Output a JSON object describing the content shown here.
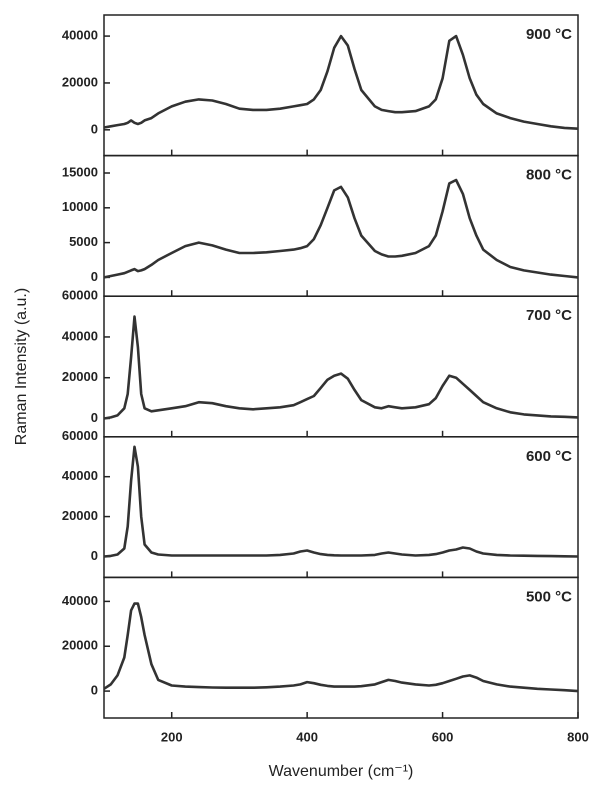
{
  "chart_data": [
    {
      "type": "line",
      "label": "900 °C",
      "color": "#333333",
      "x": [
        100,
        110,
        120,
        130,
        135,
        140,
        145,
        150,
        155,
        160,
        170,
        180,
        200,
        220,
        240,
        260,
        280,
        300,
        320,
        340,
        360,
        380,
        390,
        400,
        410,
        420,
        430,
        440,
        450,
        460,
        470,
        480,
        500,
        510,
        520,
        530,
        540,
        560,
        580,
        590,
        600,
        610,
        620,
        630,
        640,
        650,
        660,
        680,
        700,
        720,
        740,
        760,
        780,
        800
      ],
      "values": [
        1000,
        1500,
        2000,
        2500,
        3000,
        4000,
        3000,
        2500,
        3000,
        4000,
        5000,
        7000,
        10000,
        12000,
        13000,
        12500,
        11000,
        9000,
        8500,
        8500,
        9000,
        10000,
        10500,
        11000,
        13000,
        17000,
        25000,
        35000,
        40000,
        36000,
        26000,
        17000,
        10000,
        8500,
        8000,
        7500,
        7500,
        8000,
        10000,
        13000,
        22000,
        38000,
        40000,
        32000,
        22000,
        15000,
        11000,
        7000,
        5000,
        3500,
        2500,
        1500,
        800,
        500
      ],
      "xlim": [
        100,
        800
      ],
      "xticks": [
        200,
        400,
        600
      ],
      "ylim": [
        -11000,
        49000
      ],
      "yticks": [
        0,
        20000,
        40000
      ]
    },
    {
      "type": "line",
      "label": "800 °C",
      "color": "#333333",
      "x": [
        100,
        110,
        120,
        130,
        135,
        140,
        145,
        150,
        155,
        160,
        170,
        180,
        200,
        220,
        240,
        260,
        280,
        300,
        320,
        340,
        360,
        380,
        390,
        400,
        410,
        420,
        430,
        440,
        450,
        460,
        470,
        480,
        500,
        510,
        520,
        530,
        540,
        560,
        580,
        590,
        600,
        610,
        620,
        630,
        640,
        650,
        660,
        680,
        700,
        720,
        740,
        760,
        780,
        800
      ],
      "values": [
        0,
        200,
        400,
        600,
        800,
        1000,
        1200,
        900,
        1000,
        1200,
        1800,
        2500,
        3500,
        4500,
        5000,
        4600,
        4000,
        3500,
        3500,
        3600,
        3800,
        4000,
        4200,
        4500,
        5500,
        7500,
        10000,
        12500,
        13000,
        11500,
        8500,
        6000,
        3800,
        3300,
        3000,
        3000,
        3100,
        3500,
        4500,
        6000,
        9500,
        13500,
        14000,
        12000,
        8500,
        6000,
        4000,
        2500,
        1500,
        1000,
        700,
        400,
        200,
        0
      ],
      "xlim": [
        100,
        800
      ],
      "xticks": [
        200,
        400,
        600
      ],
      "ylim": [
        -2700,
        17500
      ],
      "yticks": [
        0,
        5000,
        10000,
        15000
      ]
    },
    {
      "type": "line",
      "label": "700 °C",
      "color": "#333333",
      "ylabel": "Raman Intensity (a.u.)",
      "x": [
        100,
        110,
        120,
        130,
        135,
        140,
        145,
        150,
        155,
        160,
        170,
        180,
        200,
        220,
        240,
        260,
        280,
        300,
        320,
        340,
        360,
        380,
        390,
        400,
        410,
        420,
        430,
        440,
        450,
        460,
        470,
        480,
        500,
        510,
        520,
        530,
        540,
        560,
        580,
        590,
        600,
        610,
        620,
        630,
        640,
        650,
        660,
        680,
        700,
        720,
        740,
        760,
        780,
        800
      ],
      "values": [
        0,
        500,
        1500,
        5000,
        12000,
        30000,
        50000,
        35000,
        12000,
        5000,
        3500,
        4000,
        5000,
        6000,
        8000,
        7500,
        6000,
        5000,
        4500,
        5000,
        5500,
        6500,
        8000,
        9500,
        11000,
        15000,
        19000,
        21000,
        22000,
        19500,
        14000,
        9000,
        5500,
        5000,
        6000,
        5500,
        5000,
        5500,
        7000,
        10000,
        16000,
        21000,
        20000,
        17000,
        14000,
        11000,
        8000,
        5000,
        3000,
        2000,
        1500,
        1000,
        800,
        500
      ],
      "xlim": [
        100,
        800
      ],
      "xticks": [
        200,
        400,
        600
      ],
      "ylim": [
        -9000,
        60000
      ],
      "yticks": [
        0,
        20000,
        40000,
        60000
      ]
    },
    {
      "type": "line",
      "label": "600 °C",
      "color": "#333333",
      "x": [
        100,
        110,
        120,
        130,
        135,
        140,
        145,
        150,
        155,
        160,
        170,
        180,
        200,
        220,
        240,
        260,
        280,
        300,
        320,
        340,
        360,
        380,
        390,
        400,
        410,
        420,
        430,
        440,
        450,
        460,
        470,
        480,
        500,
        510,
        520,
        530,
        540,
        560,
        580,
        590,
        600,
        610,
        620,
        630,
        640,
        650,
        660,
        680,
        700,
        720,
        740,
        760,
        780,
        800
      ],
      "values": [
        0,
        300,
        1000,
        4000,
        15000,
        38000,
        55000,
        45000,
        20000,
        6000,
        2000,
        1000,
        500,
        500,
        500,
        500,
        500,
        500,
        500,
        500,
        800,
        1500,
        2500,
        3000,
        2000,
        1200,
        800,
        600,
        500,
        500,
        500,
        500,
        800,
        1500,
        2000,
        1500,
        1000,
        500,
        800,
        1200,
        2000,
        3000,
        3500,
        4500,
        4000,
        2500,
        1500,
        800,
        500,
        400,
        300,
        200,
        100,
        0
      ],
      "xlim": [
        100,
        800
      ],
      "xticks": [
        200,
        400,
        600
      ],
      "ylim": [
        -10500,
        60000
      ],
      "yticks": [
        0,
        20000,
        40000,
        60000
      ]
    },
    {
      "type": "line",
      "label": "500 °C",
      "color": "#333333",
      "xlabel": "Wavenumber (cm⁻¹)",
      "x": [
        100,
        110,
        120,
        130,
        135,
        140,
        145,
        150,
        155,
        160,
        170,
        180,
        200,
        220,
        240,
        260,
        280,
        300,
        320,
        340,
        360,
        380,
        390,
        400,
        410,
        420,
        430,
        440,
        450,
        460,
        470,
        480,
        500,
        510,
        520,
        530,
        540,
        560,
        580,
        590,
        600,
        610,
        620,
        630,
        640,
        650,
        660,
        680,
        700,
        720,
        740,
        760,
        780,
        800
      ],
      "values": [
        1000,
        3000,
        7000,
        15000,
        25000,
        36000,
        39000,
        39000,
        33000,
        25000,
        12000,
        5000,
        2500,
        2000,
        1800,
        1600,
        1500,
        1500,
        1500,
        1700,
        2000,
        2500,
        3000,
        4000,
        3500,
        2800,
        2300,
        2000,
        2000,
        2000,
        2000,
        2200,
        3000,
        4000,
        5000,
        4500,
        3800,
        3000,
        2500,
        2800,
        3500,
        4500,
        5500,
        6500,
        7000,
        6000,
        4500,
        3000,
        2000,
        1500,
        1000,
        700,
        400,
        0
      ],
      "xlim": [
        100,
        800
      ],
      "xticks": [
        200,
        400,
        600,
        800
      ],
      "ylim": [
        -12000,
        50700
      ],
      "yticks": [
        0,
        20000,
        40000
      ]
    }
  ]
}
